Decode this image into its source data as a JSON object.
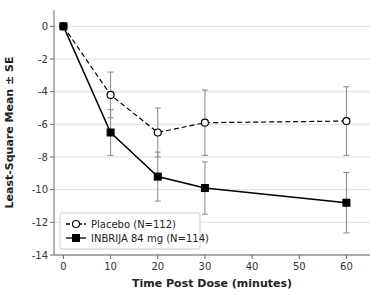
{
  "chart_data": {
    "type": "line",
    "x": [
      0,
      10,
      20,
      30,
      60
    ],
    "series": [
      {
        "name": "Placebo (N=112)",
        "color": "#000000",
        "line_style": "dashed",
        "marker": "circle",
        "values": [
          0,
          -4.2,
          -6.5,
          -5.9,
          -5.8
        ],
        "errors": [
          0.0,
          1.4,
          1.5,
          2.0,
          2.1
        ]
      },
      {
        "name": "INBRIJA 84 mg (N=114)",
        "color": "#000000",
        "line_style": "solid",
        "marker": "square",
        "values": [
          0,
          -6.5,
          -9.2,
          -9.9,
          -10.8
        ],
        "errors": [
          0.0,
          1.4,
          1.5,
          1.6,
          1.85
        ]
      }
    ],
    "x_label": "Time Post Dose (minutes)",
    "y_label": "Least-Square Mean ± SE",
    "xlim": [
      -2,
      65
    ],
    "ylim": [
      -14,
      1
    ],
    "xticks": [
      0,
      10,
      20,
      30,
      40,
      50,
      60
    ],
    "yticks": [
      0,
      -2,
      -4,
      -6,
      -8,
      -10,
      -12,
      -14
    ],
    "grid": true,
    "legend": "lower left"
  }
}
